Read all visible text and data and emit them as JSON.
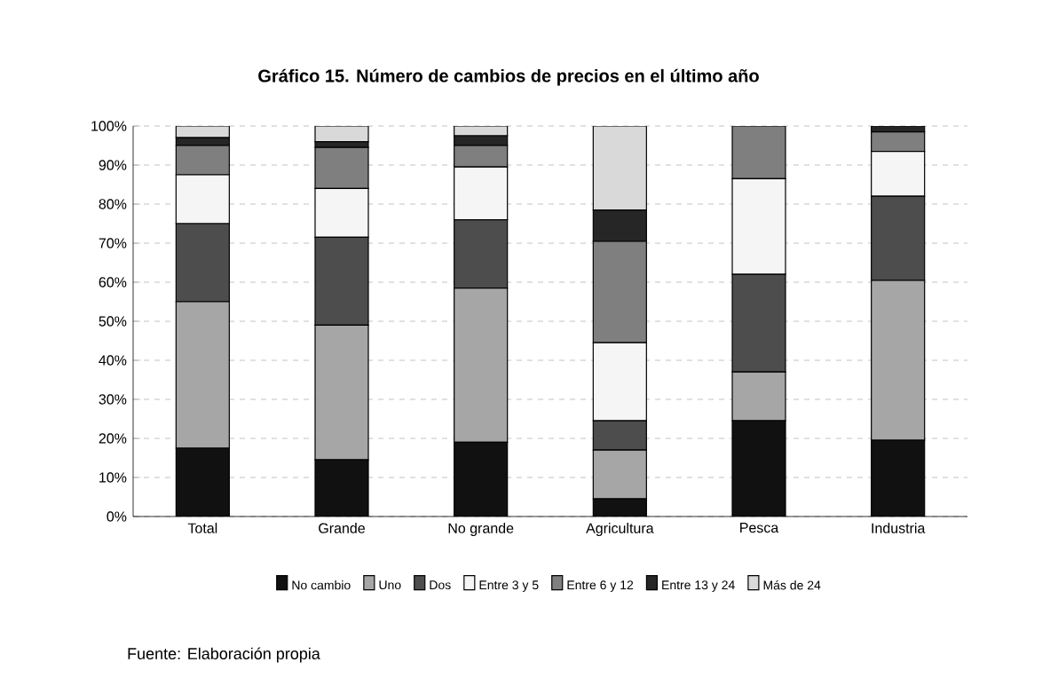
{
  "chart_data": {
    "type": "bar",
    "title": "Gráfico 15. Número de cambios de precios en el último año",
    "categories": [
      "Total",
      "Grande",
      "No grande",
      "Agricultura",
      "Pesca",
      "Industria"
    ],
    "stacked": true,
    "series": [
      {
        "name": "No cambio",
        "color": "#111111",
        "values": [
          17.5,
          14.5,
          19,
          4.5,
          24.5,
          19.5
        ]
      },
      {
        "name": "Uno",
        "color": "#a6a6a6",
        "values": [
          37.5,
          34.5,
          39.5,
          12.5,
          12.5,
          41
        ]
      },
      {
        "name": "Dos",
        "color": "#4d4d4d",
        "values": [
          20,
          22.5,
          17.5,
          7.5,
          25,
          21.5
        ]
      },
      {
        "name": "Entre 3 y 5",
        "color": "#f5f5f5",
        "values": [
          12.5,
          12.5,
          13.5,
          20,
          24.5,
          11.5
        ]
      },
      {
        "name": "Entre 6 y 12",
        "color": "#7f7f7f",
        "values": [
          7.5,
          10.5,
          5.5,
          26,
          13.5,
          5
        ]
      },
      {
        "name": "Entre 13 y 24",
        "color": "#262626",
        "values": [
          2,
          1.5,
          2.5,
          8,
          0,
          1.5
        ]
      },
      {
        "name": "Más de 24",
        "color": "#d9d9d9",
        "values": [
          3,
          4,
          2.5,
          21.5,
          0,
          null
        ]
      }
    ],
    "ylim": [
      0,
      100
    ],
    "yticks": [
      {
        "value": 0,
        "label": "0%"
      },
      {
        "value": 10,
        "label": "10%"
      },
      {
        "value": 20,
        "label": "20%"
      },
      {
        "value": 30,
        "label": "30%"
      },
      {
        "value": 40,
        "label": "40%"
      },
      {
        "value": 50,
        "label": "50%"
      },
      {
        "value": 60,
        "label": "60%"
      },
      {
        "value": 70,
        "label": "70%"
      },
      {
        "value": 80,
        "label": "80%"
      },
      {
        "value": 90,
        "label": "90%"
      },
      {
        "value": 100,
        "label": "100%"
      }
    ],
    "grid": "y",
    "legend": "bottom",
    "annotations": [
      "Fuente: Elaboración propia"
    ]
  }
}
